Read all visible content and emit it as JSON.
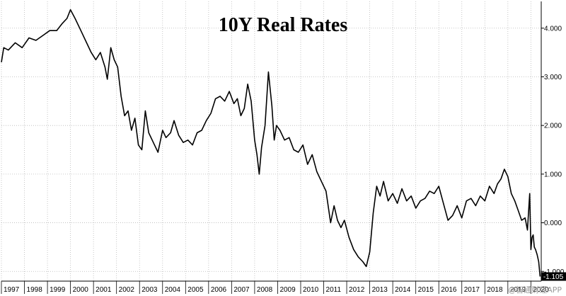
{
  "chart_data": {
    "type": "line",
    "title": "10Y Real Rates",
    "xlabel": "",
    "ylabel": "",
    "xlim": [
      1997.0,
      2020.45
    ],
    "ylim": [
      -1.2,
      4.55
    ],
    "grid": true,
    "y_ticks": [
      -1.0,
      0.0,
      1.0,
      2.0,
      3.0,
      4.0
    ],
    "y_tick_labels": [
      "-1.000",
      "0.000",
      "1.000",
      "2.000",
      "3.000",
      "4.000"
    ],
    "x_ticks": [
      1997,
      1998,
      1999,
      2000,
      2001,
      2002,
      2003,
      2004,
      2005,
      2006,
      2007,
      2008,
      2009,
      2010,
      2011,
      2012,
      2013,
      2014,
      2015,
      2016,
      2017,
      2018,
      2019,
      2020
    ],
    "x_tick_labels": [
      "1997",
      "1998",
      "1999",
      "2000",
      "2001",
      "2002",
      "2003",
      "2004",
      "2005",
      "2006",
      "2007",
      "2008",
      "2009",
      "2010",
      "2011",
      "2012",
      "2013",
      "2014",
      "2015",
      "2016",
      "2017",
      "2018",
      "2019",
      "2020"
    ],
    "last_value_label": "-1.105",
    "series": [
      {
        "color": "#000000",
        "x": [
          1997.0,
          1997.1,
          1997.3,
          1997.6,
          1997.9,
          1998.2,
          1998.5,
          1998.8,
          1999.1,
          1999.4,
          1999.65,
          1999.85,
          2000.0,
          2000.2,
          2000.45,
          2000.7,
          2000.9,
          2001.1,
          2001.3,
          2001.5,
          2001.6,
          2001.75,
          2001.9,
          2002.05,
          2002.2,
          2002.35,
          2002.5,
          2002.65,
          2002.8,
          2002.95,
          2003.1,
          2003.25,
          2003.4,
          2003.6,
          2003.8,
          2004.0,
          2004.15,
          2004.35,
          2004.5,
          2004.7,
          2004.9,
          2005.1,
          2005.3,
          2005.5,
          2005.7,
          2005.9,
          2006.1,
          2006.3,
          2006.5,
          2006.7,
          2006.9,
          2007.1,
          2007.25,
          2007.4,
          2007.55,
          2007.7,
          2007.85,
          2008.0,
          2008.1,
          2008.2,
          2008.3,
          2008.45,
          2008.6,
          2008.75,
          2008.85,
          2008.95,
          2009.1,
          2009.3,
          2009.5,
          2009.7,
          2009.9,
          2010.1,
          2010.3,
          2010.5,
          2010.7,
          2010.9,
          2011.1,
          2011.3,
          2011.45,
          2011.6,
          2011.75,
          2011.9,
          2012.1,
          2012.3,
          2012.5,
          2012.7,
          2012.85,
          2013.0,
          2013.15,
          2013.3,
          2013.45,
          2013.6,
          2013.8,
          2014.0,
          2014.2,
          2014.4,
          2014.6,
          2014.8,
          2015.0,
          2015.2,
          2015.4,
          2015.6,
          2015.8,
          2016.0,
          2016.2,
          2016.4,
          2016.6,
          2016.8,
          2017.0,
          2017.2,
          2017.4,
          2017.6,
          2017.8,
          2018.0,
          2018.2,
          2018.4,
          2018.55,
          2018.7,
          2018.85,
          2019.0,
          2019.15,
          2019.3,
          2019.45,
          2019.6,
          2019.75,
          2019.85,
          2019.95,
          2020.0,
          2020.05,
          2020.1,
          2020.15,
          2020.2,
          2020.27,
          2020.34,
          2020.4
        ],
        "y": [
          3.3,
          3.6,
          3.55,
          3.7,
          3.6,
          3.8,
          3.75,
          3.85,
          3.95,
          3.95,
          4.1,
          4.2,
          4.38,
          4.2,
          3.95,
          3.7,
          3.5,
          3.35,
          3.5,
          3.2,
          2.95,
          3.6,
          3.35,
          3.2,
          2.6,
          2.2,
          2.3,
          1.9,
          2.15,
          1.6,
          1.5,
          2.3,
          1.85,
          1.65,
          1.45,
          1.9,
          1.75,
          1.85,
          2.1,
          1.8,
          1.65,
          1.7,
          1.6,
          1.85,
          1.9,
          2.1,
          2.25,
          2.55,
          2.6,
          2.5,
          2.7,
          2.45,
          2.55,
          2.2,
          2.35,
          2.85,
          2.5,
          1.7,
          1.4,
          1.0,
          1.55,
          2.0,
          3.1,
          2.4,
          1.7,
          2.0,
          1.9,
          1.7,
          1.75,
          1.5,
          1.45,
          1.6,
          1.2,
          1.4,
          1.05,
          0.85,
          0.65,
          0.0,
          0.35,
          0.05,
          -0.1,
          0.05,
          -0.3,
          -0.55,
          -0.7,
          -0.8,
          -0.9,
          -0.6,
          0.2,
          0.75,
          0.55,
          0.85,
          0.45,
          0.6,
          0.4,
          0.7,
          0.45,
          0.55,
          0.3,
          0.45,
          0.5,
          0.65,
          0.6,
          0.75,
          0.4,
          0.05,
          0.15,
          0.35,
          0.1,
          0.45,
          0.5,
          0.35,
          0.55,
          0.45,
          0.75,
          0.6,
          0.8,
          0.9,
          1.1,
          0.95,
          0.6,
          0.45,
          0.25,
          0.05,
          0.1,
          -0.15,
          0.6,
          -0.55,
          -0.3,
          -0.25,
          -0.5,
          -0.55,
          -0.65,
          -0.8,
          -1.105
        ]
      }
    ]
  },
  "watermark": "@智通财经APP"
}
